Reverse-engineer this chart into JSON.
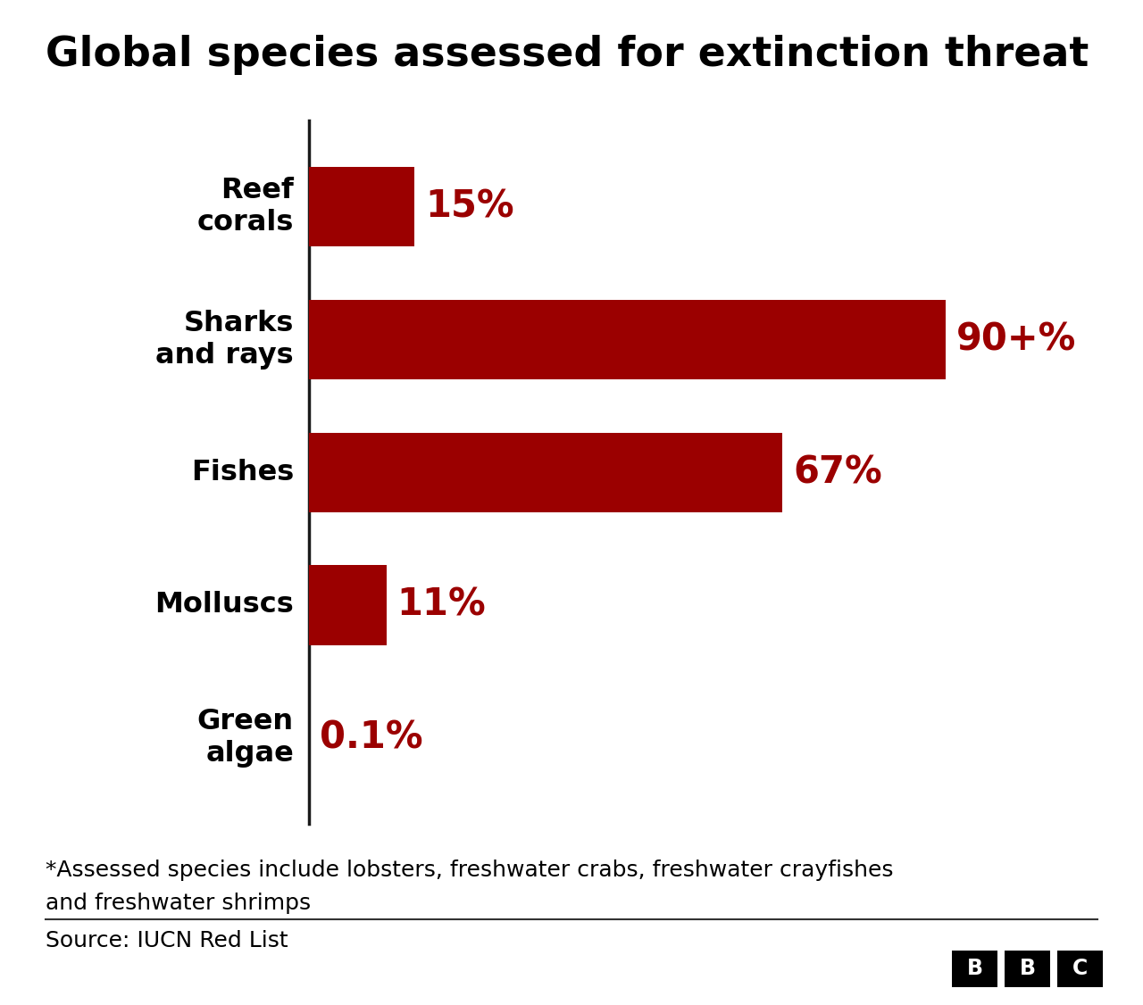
{
  "title": "Global species assessed for extinction threat",
  "categories": [
    "Reef\ncorals",
    "Sharks\nand rays",
    "Fishes",
    "Molluscs",
    "Green\nalgae"
  ],
  "values": [
    15,
    90,
    67,
    11,
    0.1
  ],
  "labels": [
    "15%",
    "90+%",
    "67%",
    "11%",
    "0.1%"
  ],
  "bar_color": "#9b0000",
  "label_color": "#9b0000",
  "title_color": "#000000",
  "background_color": "#ffffff",
  "footnote_line1": "*Assessed species include lobsters, freshwater crabs, freshwater crayfishes",
  "footnote_line2": "and freshwater shrimps",
  "source": "Source: IUCN Red List",
  "xlim": [
    0,
    105
  ],
  "title_fontsize": 33,
  "label_fontsize": 30,
  "category_fontsize": 23,
  "footnote_fontsize": 18,
  "source_fontsize": 18,
  "bar_height": 0.6
}
